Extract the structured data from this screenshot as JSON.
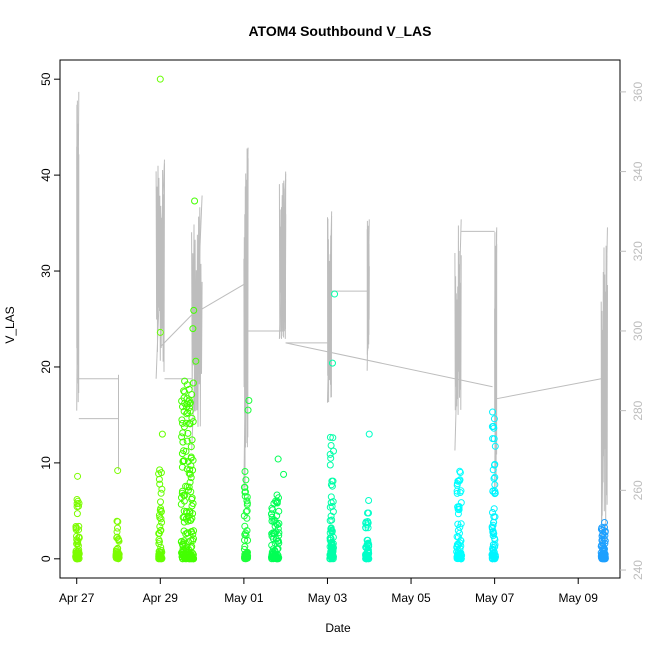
{
  "chart_data": {
    "type": "scatter",
    "title": "ATOM4 Southbound V_LAS",
    "xlabel": "Date",
    "ylabel": "V_LAS",
    "xlim_days": [
      -0.4,
      13.0
    ],
    "ylim": [
      -2,
      52
    ],
    "right_ylim": [
      238,
      368
    ],
    "x_ticks": [
      {
        "day": 0,
        "label": "Apr 27"
      },
      {
        "day": 2,
        "label": "Apr 29"
      },
      {
        "day": 4,
        "label": "May 01"
      },
      {
        "day": 6,
        "label": "May 03"
      },
      {
        "day": 8,
        "label": "May 05"
      },
      {
        "day": 10,
        "label": "May 07"
      },
      {
        "day": 12,
        "label": "May 09"
      }
    ],
    "y_ticks": [
      0,
      10,
      20,
      30,
      40,
      50
    ],
    "right_ticks": [
      240,
      260,
      280,
      300,
      320,
      340,
      360
    ],
    "scatter_colors": [
      "#7fff00",
      "#00ff80",
      "#00ffff",
      "#0080ff"
    ],
    "line_color": "#bdbdbd",
    "clusters": [
      {
        "day": 0.02,
        "width": 0.09,
        "max": 6.5,
        "n": 45,
        "color": "#7cfc00"
      },
      {
        "day": 0.98,
        "width": 0.08,
        "max": 4.4,
        "n": 30,
        "color": "#7cfc00"
      },
      {
        "day": 2.0,
        "width": 0.08,
        "max": 9.3,
        "n": 45,
        "color": "#66ff00"
      },
      {
        "day": 2.65,
        "width": 0.3,
        "max": 19.0,
        "n": 160,
        "color": "#44ff00"
      },
      {
        "day": 4.05,
        "width": 0.08,
        "max": 10.5,
        "n": 45,
        "color": "#1cff3a"
      },
      {
        "day": 4.75,
        "width": 0.18,
        "max": 7.0,
        "n": 70,
        "color": "#00ff55"
      },
      {
        "day": 6.1,
        "width": 0.09,
        "max": 13.0,
        "n": 70,
        "color": "#00ffa8"
      },
      {
        "day": 6.95,
        "width": 0.08,
        "max": 6.5,
        "n": 45,
        "color": "#00ffc8"
      },
      {
        "day": 9.15,
        "width": 0.12,
        "max": 9.3,
        "n": 55,
        "color": "#00ffff"
      },
      {
        "day": 9.98,
        "width": 0.08,
        "max": 15.0,
        "n": 55,
        "color": "#00f4ff"
      },
      {
        "day": 12.6,
        "width": 0.1,
        "max": 4.0,
        "n": 55,
        "color": "#1ea0ff"
      }
    ],
    "outliers": [
      {
        "day": 2.0,
        "y": 50.0,
        "color": "#66ff00"
      },
      {
        "day": 2.0,
        "y": 23.6,
        "color": "#66ff00"
      },
      {
        "day": 2.05,
        "y": 13.0,
        "color": "#66ff00"
      },
      {
        "day": 0.02,
        "y": 8.6,
        "color": "#7cfc00"
      },
      {
        "day": 0.98,
        "y": 9.2,
        "color": "#7cfc00"
      },
      {
        "day": 2.82,
        "y": 37.3,
        "color": "#44ff00"
      },
      {
        "day": 2.8,
        "y": 25.9,
        "color": "#44ff00"
      },
      {
        "day": 2.78,
        "y": 24.0,
        "color": "#44ff00"
      },
      {
        "day": 2.85,
        "y": 20.6,
        "color": "#44ff00"
      },
      {
        "day": 4.12,
        "y": 16.5,
        "color": "#1cff3a"
      },
      {
        "day": 4.1,
        "y": 15.5,
        "color": "#1cff3a"
      },
      {
        "day": 4.82,
        "y": 10.4,
        "color": "#00ff55"
      },
      {
        "day": 4.95,
        "y": 8.8,
        "color": "#00ff55"
      },
      {
        "day": 6.12,
        "y": 20.4,
        "color": "#00ffa8"
      },
      {
        "day": 6.17,
        "y": 27.6,
        "color": "#00ffa8"
      },
      {
        "day": 7.0,
        "y": 13.0,
        "color": "#00ffc8"
      },
      {
        "day": 9.95,
        "y": 15.3,
        "color": "#00f4ff"
      },
      {
        "day": 9.97,
        "y": 13.8,
        "color": "#00f4ff"
      }
    ],
    "overlay_segments": [
      {
        "x0": 0.0,
        "x1": 0.05,
        "y0": 280,
        "y1": 360
      },
      {
        "x0": 0.05,
        "x1": 1.0,
        "y0": 278,
        "y1": 278
      },
      {
        "x0": 0.0,
        "x1": 1.0,
        "y0": 288,
        "y1": 288
      },
      {
        "x0": 1.0,
        "x1": 1.0,
        "y0": 265,
        "y1": 289
      },
      {
        "x0": 1.9,
        "x1": 2.1,
        "y0": 288,
        "y1": 343
      },
      {
        "x0": 2.1,
        "x1": 2.75,
        "y0": 288,
        "y1": 288
      },
      {
        "x0": 2.0,
        "x1": 2.75,
        "y0": 296,
        "y1": 304
      },
      {
        "x0": 2.75,
        "x1": 3.0,
        "y0": 270,
        "y1": 334
      },
      {
        "x0": 2.75,
        "x1": 4.05,
        "y0": 304,
        "y1": 312
      },
      {
        "x0": 4.0,
        "x1": 4.1,
        "y0": 260,
        "y1": 346
      },
      {
        "x0": 4.05,
        "x1": 4.9,
        "y0": 300,
        "y1": 300
      },
      {
        "x0": 4.9,
        "x1": 5.0,
        "y0": 298,
        "y1": 340
      },
      {
        "x0": 4.85,
        "x1": 5.0,
        "y0": 298,
        "y1": 338
      },
      {
        "x0": 5.0,
        "x1": 6.0,
        "y0": 297,
        "y1": 297
      },
      {
        "x0": 6.0,
        "x1": 6.1,
        "y0": 282,
        "y1": 330
      },
      {
        "x0": 6.1,
        "x1": 6.95,
        "y0": 310,
        "y1": 310
      },
      {
        "x0": 6.95,
        "x1": 7.0,
        "y0": 290,
        "y1": 328
      },
      {
        "x0": 5.0,
        "x1": 9.95,
        "y0": 297,
        "y1": 286
      },
      {
        "x0": 9.05,
        "x1": 9.2,
        "y0": 270,
        "y1": 328
      },
      {
        "x0": 9.2,
        "x1": 10.0,
        "y0": 325,
        "y1": 325
      },
      {
        "x0": 10.0,
        "x1": 10.05,
        "y0": 260,
        "y1": 326
      },
      {
        "x0": 10.05,
        "x1": 12.55,
        "y0": 283,
        "y1": 288
      },
      {
        "x0": 12.55,
        "x1": 12.7,
        "y0": 245,
        "y1": 326
      }
    ]
  }
}
